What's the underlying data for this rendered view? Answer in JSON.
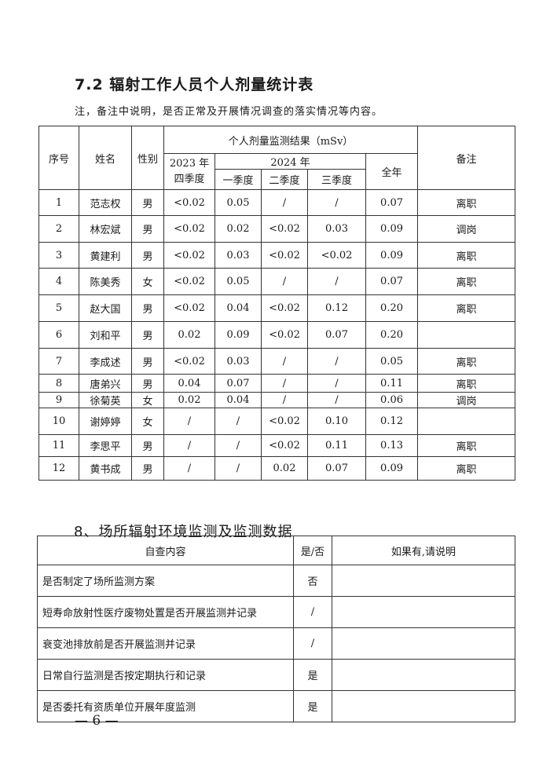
{
  "section72": {
    "title": "7.2  辐射工作人员个人剂量统计表",
    "note": "注，备注中说明，是否正常及开展情况调查的落实情况等内容。",
    "headers": {
      "no": "序号",
      "name": "姓名",
      "gender": "性别",
      "result": "个人剂量监测结果（mSv）",
      "y2023": "2023 年",
      "q4": "四季度",
      "y2024": "2024 年",
      "q1": "一季度",
      "q2": "二季度",
      "q3": "三季度",
      "total": "全年",
      "remark": "备注"
    },
    "rows": [
      [
        "1",
        "范志权",
        "男",
        "<0.02",
        "0.05",
        "/",
        "/",
        "0.07",
        "离职"
      ],
      [
        "2",
        "林宏斌",
        "男",
        "<0.02",
        "0.02",
        "<0.02",
        "0.03",
        "0.09",
        "调岗"
      ],
      [
        "3",
        "黄建利",
        "男",
        "<0.02",
        "0.03",
        "<0.02",
        "<0.02",
        "0.09",
        "离职"
      ],
      [
        "4",
        "陈美秀",
        "女",
        "<0.02",
        "0.05",
        "/",
        "/",
        "0.07",
        "离职"
      ],
      [
        "5",
        "赵大国",
        "男",
        "<0.02",
        "0.04",
        "<0.02",
        "0.12",
        "0.20",
        "离职"
      ],
      [
        "6",
        "刘和平",
        "男",
        "0.02",
        "0.09",
        "<0.02",
        "0.07",
        "0.20",
        ""
      ],
      [
        "7",
        "李成述",
        "男",
        "<0.02",
        "0.03",
        "/",
        "/",
        "0.05",
        "离职"
      ],
      [
        "8",
        "唐弟兴",
        "男",
        "0.04",
        "0.07",
        "/",
        "/",
        "0.11",
        "离职"
      ],
      [
        "9",
        "徐菊英",
        "女",
        "0.02",
        "0.04",
        "/",
        "/",
        "0.06",
        "调岗"
      ],
      [
        "10",
        "谢婷婷",
        "女",
        "/",
        "/",
        "<0.02",
        "0.10",
        "0.12",
        ""
      ],
      [
        "11",
        "李思平",
        "男",
        "/",
        "/",
        "<0.02",
        "0.11",
        "0.13",
        "离职"
      ],
      [
        "12",
        "黄书成",
        "男",
        "/",
        "/",
        "0.02",
        "0.07",
        "0.09",
        "离职"
      ]
    ]
  },
  "section8": {
    "title": "8、场所辐射环境监测及监测数据",
    "headers": {
      "content": "自查内容",
      "yesno": "是/否",
      "explain": "如果有,请说明"
    },
    "rows": [
      [
        "是否制定了场所监测方案",
        "否",
        ""
      ],
      [
        "短寿命放射性医疗废物处置是否开展监测并记录",
        "/",
        ""
      ],
      [
        "衰变池排放前是否开展监测并记录",
        "/",
        ""
      ],
      [
        "日常自行监测是否按定期执行和记录",
        "是",
        ""
      ],
      [
        "是否委托有资质单位开展年度监测",
        "是",
        ""
      ]
    ]
  },
  "page_number": "— 6 —"
}
